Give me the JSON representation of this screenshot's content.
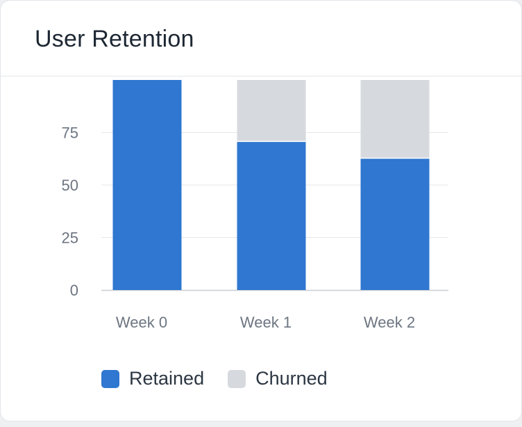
{
  "card": {
    "title": "User Retention"
  },
  "chart_data": {
    "type": "bar",
    "stacked": true,
    "categories": [
      "Week 0",
      "Week 1",
      "Week 2"
    ],
    "series": [
      {
        "name": "Retained",
        "color": "#2f77d0",
        "values": [
          100,
          71,
          63
        ]
      },
      {
        "name": "Churned",
        "color": "#d6d9de",
        "values": [
          0,
          29,
          37
        ]
      }
    ],
    "yticks": [
      0,
      25,
      50,
      75
    ],
    "ylim": [
      0,
      100
    ],
    "grid": true,
    "legend": "bottom-left"
  }
}
